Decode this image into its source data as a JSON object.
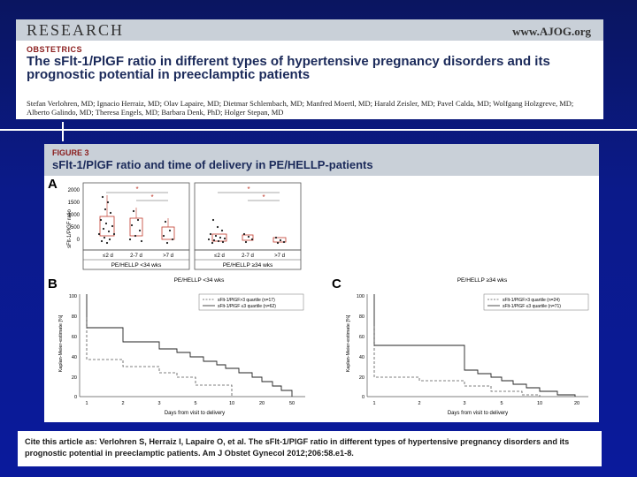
{
  "header": {
    "banner": "RESEARCH",
    "site": "www.AJOG.org",
    "section": "OBSTETRICS",
    "title": "The sFlt-1/PlGF ratio in different types of hypertensive pregnancy disorders and its prognostic potential in preeclamptic patients",
    "authors": "Stefan Verlohren, MD; Ignacio Herraiz, MD; Olav Lapaire, MD; Dietmar Schlembach, MD; Manfred Moertl, MD; Harald Zeisler, MD; Pavel Calda, MD; Wolfgang Holzgreve, MD; Alberto Galindo, MD; Theresa Engels, MD; Barbara Denk, PhD; Holger Stepan, MD"
  },
  "figure": {
    "label": "FIGURE 3",
    "title": "sFlt-1/PlGF ratio and time of delivery in PE/HELLP-patients",
    "panel_a": {
      "letter": "A",
      "ylabel": "sFlt-1/PlGF ratio",
      "yticks": [
        "2000",
        "1500",
        "1000",
        "500",
        "0"
      ],
      "groups": [
        {
          "name": "PE/HELLP <34 wks",
          "categories": [
            "≤2 d",
            "2-7 d",
            ">7 d"
          ]
        },
        {
          "name": "PE/HELLP ≥34 wks",
          "categories": [
            "≤2 d",
            "2-7 d",
            ">7 d"
          ]
        }
      ],
      "sig_marker": "*"
    },
    "panel_b": {
      "letter": "B",
      "title": "PE/HELLP <34 wks",
      "ylabel": "Kaplan-Meier-estimate [%]",
      "xlabel": "Days from visit to delivery",
      "yticks": [
        "100",
        "80",
        "60",
        "40",
        "20",
        "0"
      ],
      "xticks": [
        "1",
        "2",
        "3",
        "5",
        "10",
        "20",
        "50"
      ],
      "legend": [
        "sFlt-1/PlGF>3 quartile (n=17)",
        "sFlt-1/PlGF ≤3 quartile (n=62)"
      ]
    },
    "panel_c": {
      "letter": "C",
      "title": "PE/HELLP ≥34 wks",
      "ylabel": "Kaplan-Meier-estimate [%]",
      "xlabel": "Days from visit to delivery",
      "yticks": [
        "100",
        "80",
        "60",
        "40",
        "20",
        "0"
      ],
      "xticks": [
        "1",
        "2",
        "3",
        "5",
        "10",
        "20"
      ],
      "legend": [
        "sFlt-1/PlGF>3 quartile (n=24)",
        "sFlt-1/PlGF ≤3 quartile (n=71)"
      ]
    }
  },
  "citation": "Cite this article as: Verlohren S, Herraiz I, Lapaire O, et al. The sFlt-1/PlGF ratio in different types of hypertensive pregnancy disorders and its prognostic potential in preeclamptic patients. Am J Obstet Gynecol 2012;206:58.e1-8.",
  "colors": {
    "background": "#0b1a8a",
    "header_band": "#c9d0d8",
    "accent_red": "#8a1c1c",
    "title_navy": "#1b2a5a",
    "sig_red": "#c0392b"
  }
}
